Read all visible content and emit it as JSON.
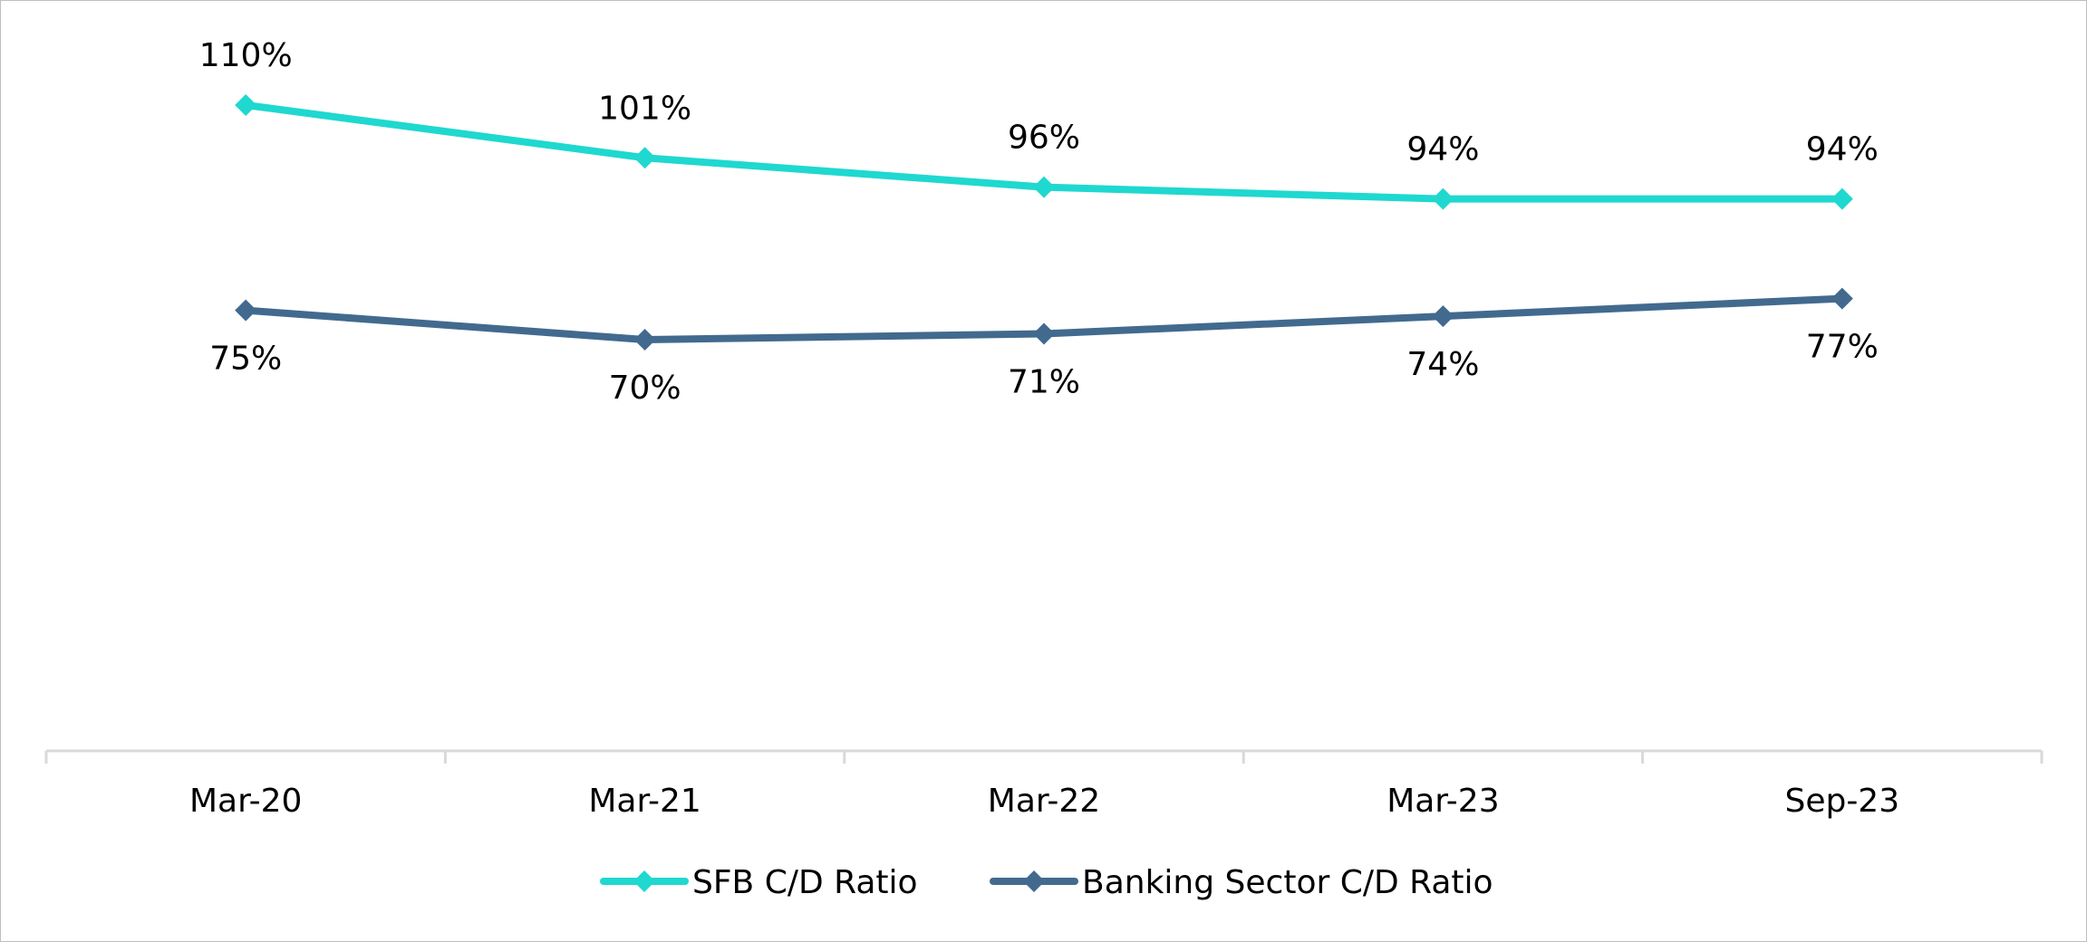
{
  "chart_data": {
    "type": "line",
    "title": "",
    "xlabel": "",
    "ylabel": "",
    "categories": [
      "Mar-20",
      "Mar-21",
      "Mar-22",
      "Mar-23",
      "Sep-23"
    ],
    "series": [
      {
        "name": "SFB C/D Ratio",
        "values": [
          110,
          101,
          96,
          94,
          94
        ],
        "labels": [
          "110%",
          "101%",
          "96%",
          "94%",
          "94%"
        ],
        "color": "#1fd8d0",
        "marker": "diamond",
        "label_position": "above"
      },
      {
        "name": "Banking Sector C/D Ratio",
        "values": [
          75,
          70,
          71,
          74,
          77
        ],
        "labels": [
          "75%",
          "70%",
          "71%",
          "74%",
          "77%"
        ],
        "color": "#426a8e",
        "marker": "diamond",
        "label_position": "below"
      }
    ],
    "ylim": [
      0,
      120
    ],
    "y_axis_visible": false,
    "grid": false,
    "legend_position": "bottom",
    "axis_color": "#d9d9d9"
  }
}
